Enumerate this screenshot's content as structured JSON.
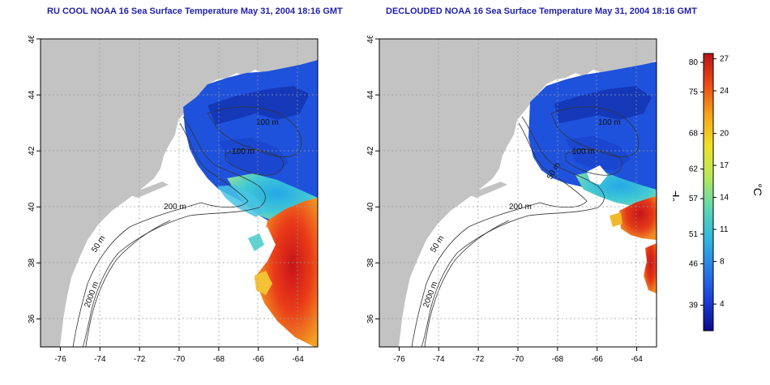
{
  "titles": {
    "left": "RU COOL NOAA 16 Sea Surface Temperature May 31, 2004 18:16 GMT",
    "right": "DECLOUDED NOAA 16 Sea Surface Temperature May 31, 2004 18:16 GMT"
  },
  "map": {
    "lon_range": [
      -77,
      -63
    ],
    "lat_range": [
      35,
      46
    ],
    "lon_ticks": [
      -76,
      -74,
      -72,
      -70,
      -68,
      -66,
      -64
    ],
    "lat_ticks": [
      36,
      38,
      40,
      42,
      44,
      46
    ],
    "grid": true,
    "land_color": "#c3c3c3",
    "ocean_color": "#ffffff"
  },
  "contour_labels": {
    "left": [
      "100 m",
      "100 m",
      "200 m",
      "50 m",
      "2000 m"
    ],
    "right": [
      "100 m",
      "100 m",
      "50 m",
      "200 m",
      "50 m",
      "2000 m"
    ]
  },
  "colorbar": {
    "fahrenheit_ticks": [
      39,
      46,
      51,
      57,
      62,
      68,
      75,
      80
    ],
    "celsius_ticks": [
      4,
      8,
      11,
      14,
      17,
      20,
      24,
      27
    ],
    "fahrenheit_label": "°F",
    "celsius_label": "°C",
    "range_c": [
      1.5,
      27.5
    ],
    "colors": [
      "#0a0a8c",
      "#1b3fd8",
      "#2a7ce8",
      "#2fb8e0",
      "#5fd8b0",
      "#b8e85a",
      "#f0e028",
      "#f7a41a",
      "#ec4a14",
      "#b8141a"
    ]
  }
}
